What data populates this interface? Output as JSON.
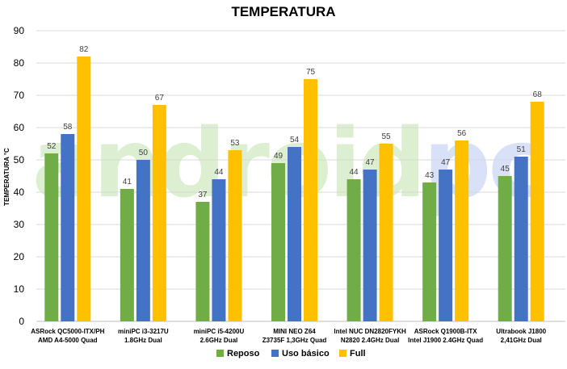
{
  "watermark": {
    "text": "androidpc",
    "color_green": "#a8d88c",
    "color_blue": "#9fb4f0"
  },
  "chart_data": {
    "type": "bar",
    "title": "TEMPERATURA",
    "ylabel": "TEMPERATURA °C",
    "xlabel": "",
    "ylim": [
      0,
      90
    ],
    "yticks": [
      0,
      10,
      20,
      30,
      40,
      50,
      60,
      70,
      80,
      90
    ],
    "grid": true,
    "legend_position": "bottom",
    "categories": [
      [
        "ASRock QC5000-ITX/PH",
        "AMD A4-5000 Quad"
      ],
      [
        "miniPC i3-3217U",
        "1.8GHz Dual"
      ],
      [
        "miniPC i5-4200U",
        "2.6GHz Dual"
      ],
      [
        "MINI NEO Z64",
        "Z3735F 1,3GHz Quad"
      ],
      [
        "Intel NUC DN2820FYKH",
        "N2820 2.4GHz Dual"
      ],
      [
        "ASRock Q1900B-ITX",
        "Intel J1900 2.4GHz Quad"
      ],
      [
        "Ultrabook J1800",
        "2,41GHz Dual"
      ]
    ],
    "series": [
      {
        "name": "Reposo",
        "color": "#70ad47",
        "values": [
          52,
          41,
          37,
          49,
          44,
          43,
          45
        ]
      },
      {
        "name": "Uso básico",
        "color": "#4472c4",
        "values": [
          58,
          50,
          44,
          54,
          47,
          47,
          51
        ]
      },
      {
        "name": "Full",
        "color": "#ffc000",
        "values": [
          82,
          67,
          53,
          75,
          55,
          56,
          68
        ]
      }
    ]
  }
}
